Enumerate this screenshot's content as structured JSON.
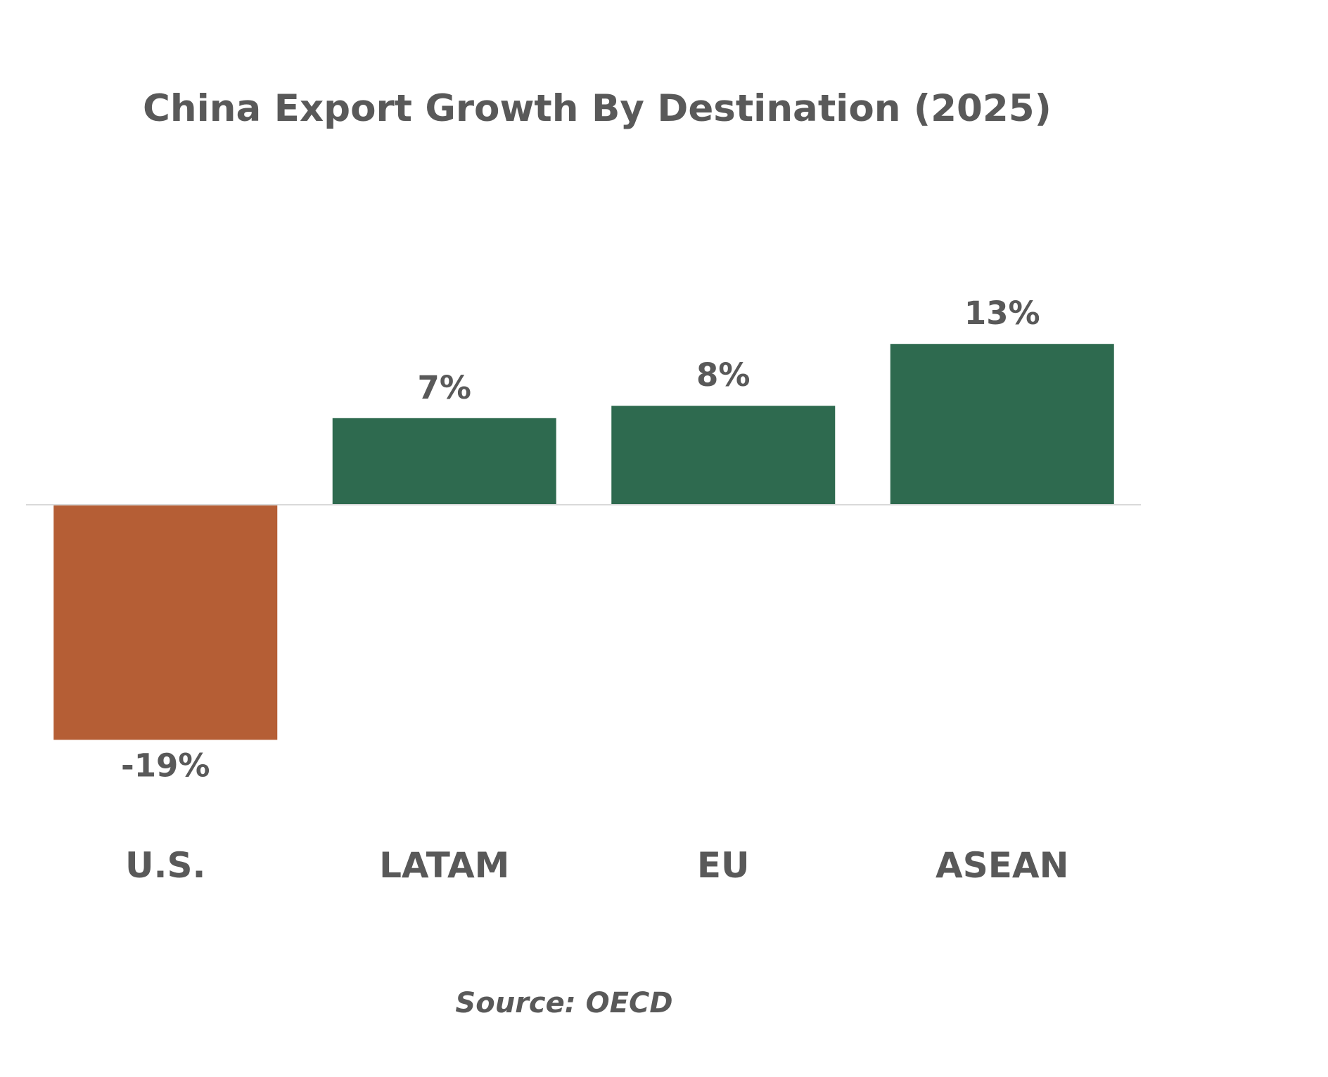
{
  "chart_data": {
    "type": "bar",
    "title": "China Export Growth By Destination (2025)",
    "categories": [
      "U.S.",
      "LATAM",
      "EU",
      "ASEAN"
    ],
    "values": [
      -19,
      7,
      8,
      13
    ],
    "value_labels": [
      "-19%",
      "7%",
      "8%",
      "13%"
    ],
    "unit": "%",
    "xlabel": "",
    "ylabel": "",
    "ylim": [
      -19,
      13
    ],
    "grid": false,
    "legend": "none",
    "colors": {
      "positive": "#2E6A4F",
      "negative": "#B55E35",
      "axis": "#D9D9D9",
      "text": "#595959"
    },
    "source": "Source: OECD"
  }
}
